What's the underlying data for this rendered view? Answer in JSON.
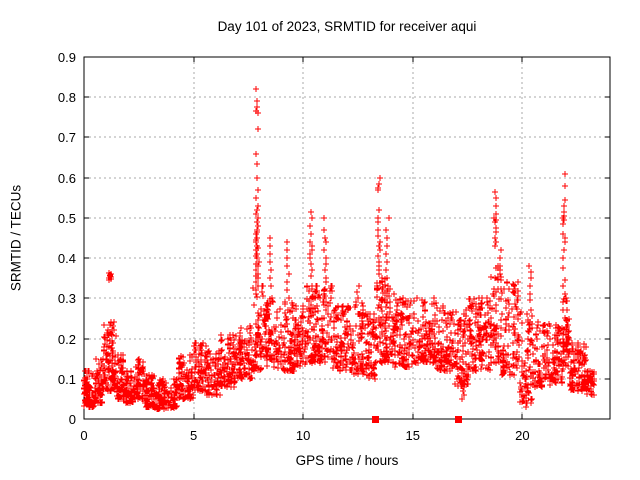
{
  "chart_data": {
    "type": "scatter",
    "title": "Day 101 of 2023, SRMTID for receiver aqui",
    "xlabel": "GPS time / hours",
    "ylabel": "SRMTID / TECUs",
    "xlim": [
      0,
      24
    ],
    "ylim": [
      0,
      0.9
    ],
    "xticks": [
      0,
      5,
      10,
      15,
      20
    ],
    "xtick_labels": [
      "0",
      "5",
      "10",
      "15",
      "20"
    ],
    "yticks": [
      0,
      0.1,
      0.2,
      0.3,
      0.4,
      0.5,
      0.6,
      0.7,
      0.8,
      0.9
    ],
    "ytick_labels": [
      "0",
      "0.1",
      "0.2",
      "0.3",
      "0.4",
      "0.5",
      "0.6",
      "0.7",
      "0.8",
      "0.9"
    ],
    "grid": true,
    "grid_color": "#a8a8a8",
    "marker": "plus",
    "marker_color": "#ff0000",
    "series": [
      {
        "name": "srmtid-points",
        "marker": "plus",
        "color": "#ff0000",
        "bands": [
          [
            0.0,
            0.5,
            0.03,
            0.12,
            70
          ],
          [
            0.5,
            0.9,
            0.04,
            0.15,
            55
          ],
          [
            0.9,
            1.45,
            0.07,
            0.24,
            80
          ],
          [
            1.45,
            1.85,
            0.05,
            0.16,
            45
          ],
          [
            1.85,
            2.35,
            0.04,
            0.12,
            55
          ],
          [
            2.35,
            2.75,
            0.05,
            0.15,
            50
          ],
          [
            2.75,
            3.25,
            0.03,
            0.11,
            55
          ],
          [
            3.25,
            4.3,
            0.025,
            0.1,
            100
          ],
          [
            4.3,
            5.0,
            0.05,
            0.16,
            65
          ],
          [
            5.0,
            5.6,
            0.07,
            0.19,
            60
          ],
          [
            5.6,
            6.25,
            0.06,
            0.17,
            55
          ],
          [
            6.25,
            7.05,
            0.08,
            0.21,
            70
          ],
          [
            7.05,
            7.7,
            0.1,
            0.23,
            60
          ],
          [
            7.7,
            8.15,
            0.12,
            0.33,
            45
          ],
          [
            8.15,
            8.75,
            0.13,
            0.3,
            60
          ],
          [
            8.75,
            9.6,
            0.12,
            0.29,
            75
          ],
          [
            9.6,
            10.15,
            0.13,
            0.28,
            55
          ],
          [
            10.15,
            10.65,
            0.14,
            0.33,
            55
          ],
          [
            10.65,
            11.35,
            0.14,
            0.33,
            65
          ],
          [
            11.35,
            12.25,
            0.12,
            0.28,
            80
          ],
          [
            12.25,
            12.95,
            0.11,
            0.29,
            65
          ],
          [
            12.95,
            13.35,
            0.1,
            0.26,
            40
          ],
          [
            13.35,
            13.75,
            0.14,
            0.35,
            45
          ],
          [
            13.75,
            14.15,
            0.14,
            0.33,
            45
          ],
          [
            14.15,
            15.1,
            0.13,
            0.3,
            85
          ],
          [
            15.1,
            16.1,
            0.14,
            0.3,
            85
          ],
          [
            16.1,
            16.85,
            0.12,
            0.28,
            70
          ],
          [
            16.85,
            17.55,
            0.08,
            0.27,
            60
          ],
          [
            17.55,
            18.55,
            0.12,
            0.3,
            85
          ],
          [
            18.55,
            19.05,
            0.14,
            0.38,
            55
          ],
          [
            19.05,
            19.85,
            0.11,
            0.34,
            70
          ],
          [
            19.85,
            20.45,
            0.04,
            0.27,
            55
          ],
          [
            20.45,
            21.35,
            0.08,
            0.24,
            70
          ],
          [
            21.35,
            21.85,
            0.09,
            0.24,
            45
          ],
          [
            21.85,
            22.15,
            0.13,
            0.3,
            35
          ],
          [
            22.15,
            22.95,
            0.07,
            0.19,
            85
          ],
          [
            22.95,
            23.3,
            0.06,
            0.12,
            30
          ]
        ],
        "spikes": [
          {
            "t": 1.18,
            "w": 0.1,
            "values": [
              0.345,
              0.349,
              0.352,
              0.355,
              0.357,
              0.36,
              0.363,
              0.35
            ]
          },
          {
            "t": 7.9,
            "w": 0.14,
            "values": [
              0.82,
              0.79,
              0.775,
              0.765,
              0.76,
              0.72,
              0.66,
              0.635,
              0.6,
              0.57,
              0.55,
              0.53,
              0.52,
              0.51,
              0.5,
              0.49,
              0.48,
              0.47,
              0.465,
              0.46,
              0.45,
              0.445,
              0.44,
              0.43,
              0.425,
              0.42,
              0.41,
              0.405,
              0.4,
              0.39,
              0.385,
              0.38,
              0.37,
              0.36,
              0.355,
              0.35,
              0.34,
              0.33,
              0.32,
              0.31
            ]
          },
          {
            "t": 8.5,
            "w": 0.1,
            "values": [
              0.45,
              0.43,
              0.41,
              0.39,
              0.37,
              0.35,
              0.33
            ]
          },
          {
            "t": 9.3,
            "w": 0.12,
            "values": [
              0.44,
              0.42,
              0.4,
              0.38,
              0.36,
              0.34,
              0.32,
              0.3
            ]
          },
          {
            "t": 10.35,
            "w": 0.12,
            "values": [
              0.515,
              0.5,
              0.48,
              0.46,
              0.44,
              0.43,
              0.42,
              0.41,
              0.4,
              0.385,
              0.37,
              0.355
            ]
          },
          {
            "t": 11.0,
            "w": 0.12,
            "values": [
              0.5,
              0.47,
              0.45,
              0.44,
              0.42,
              0.4,
              0.385,
              0.37,
              0.35,
              0.34
            ]
          },
          {
            "t": 12.5,
            "w": 0.1,
            "values": [
              0.33,
              0.315,
              0.3
            ]
          },
          {
            "t": 13.45,
            "w": 0.1,
            "values": [
              0.6,
              0.585,
              0.575,
              0.57,
              0.52,
              0.5,
              0.49,
              0.47,
              0.455,
              0.44,
              0.43,
              0.42,
              0.405,
              0.39,
              0.38,
              0.37,
              0.36
            ]
          },
          {
            "t": 13.85,
            "w": 0.12,
            "values": [
              0.5,
              0.47,
              0.45,
              0.43,
              0.41,
              0.39,
              0.37,
              0.35
            ]
          },
          {
            "t": 17.3,
            "w": 0.08,
            "values": [
              0.12,
              0.105,
              0.09,
              0.08,
              0.07,
              0.06,
              0.05
            ]
          },
          {
            "t": 18.75,
            "w": 0.1,
            "values": [
              0.565,
              0.55,
              0.53,
              0.51,
              0.5,
              0.495,
              0.49,
              0.475,
              0.465,
              0.45,
              0.44,
              0.43
            ]
          },
          {
            "t": 19.0,
            "w": 0.1,
            "values": [
              0.42,
              0.4,
              0.38,
              0.37,
              0.36
            ]
          },
          {
            "t": 20.15,
            "w": 0.08,
            "values": [
              0.14,
              0.12,
              0.1,
              0.08,
              0.06,
              0.045,
              0.03
            ]
          },
          {
            "t": 20.35,
            "w": 0.1,
            "values": [
              0.38,
              0.365,
              0.35,
              0.33,
              0.31,
              0.295
            ]
          },
          {
            "t": 21.9,
            "w": 0.1,
            "values": [
              0.61,
              0.58,
              0.545,
              0.53,
              0.515,
              0.505,
              0.5,
              0.495,
              0.485,
              0.46,
              0.45,
              0.44,
              0.42,
              0.4,
              0.375,
              0.345,
              0.33,
              0.31,
              0.29,
              0.27,
              0.25
            ]
          }
        ]
      },
      {
        "name": "axis-flag-squares",
        "marker": "square",
        "color": "#ff0000",
        "points": [
          [
            13.27,
            0
          ],
          [
            17.05,
            0
          ]
        ]
      }
    ]
  }
}
